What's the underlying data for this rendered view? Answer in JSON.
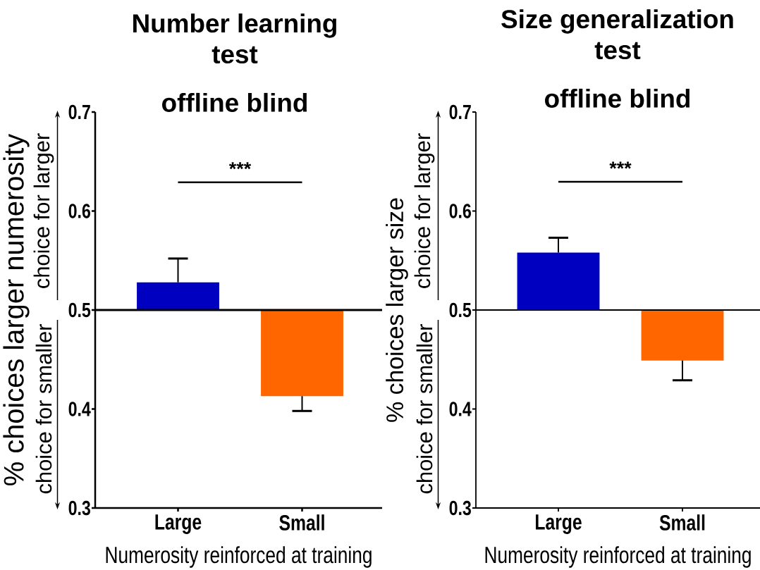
{
  "chart_data": [
    {
      "type": "bar",
      "title": "Number learning test",
      "subtitle": "offline blind",
      "xlabel": "Numerosity reinforced at training",
      "ylabel": "% choices larger numerosity",
      "categories": [
        "Large",
        "Small"
      ],
      "base": [
        0.5,
        0.5
      ],
      "values": [
        0.028,
        -0.087
      ],
      "colors": [
        "#0000c0",
        "#ff6600"
      ],
      "errors": [
        [
          0.528,
          0.552
        ],
        [
          0.398,
          0.413
        ]
      ],
      "ylim": [
        0.3,
        0.7
      ],
      "yticks": [
        0.3,
        0.4,
        0.5,
        0.6,
        0.7
      ],
      "ref_lines": [
        {
          "axis": "y",
          "value": 0.5,
          "color": "#000000"
        }
      ],
      "annotations": [
        "***",
        "choice for larger",
        "choice for smaller"
      ]
    },
    {
      "type": "bar",
      "title": "Size generalization test",
      "subtitle": "offline blind",
      "xlabel": "Numerosity reinforced at training",
      "ylabel": "% choices larger size",
      "categories": [
        "Large",
        "Small"
      ],
      "base": [
        0.5,
        0.5
      ],
      "values": [
        0.058,
        -0.051
      ],
      "colors": [
        "#0000c0",
        "#ff6600"
      ],
      "errors": [
        [
          0.558,
          0.573
        ],
        [
          0.429,
          0.449
        ]
      ],
      "ylim": [
        0.3,
        0.7
      ],
      "yticks": [
        0.3,
        0.4,
        0.5,
        0.6,
        0.7
      ],
      "ref_lines": [
        {
          "axis": "y",
          "value": 0.5,
          "color": "#000000"
        }
      ],
      "annotations": [
        "***",
        "choice for larger",
        "choice for smaller"
      ]
    }
  ]
}
